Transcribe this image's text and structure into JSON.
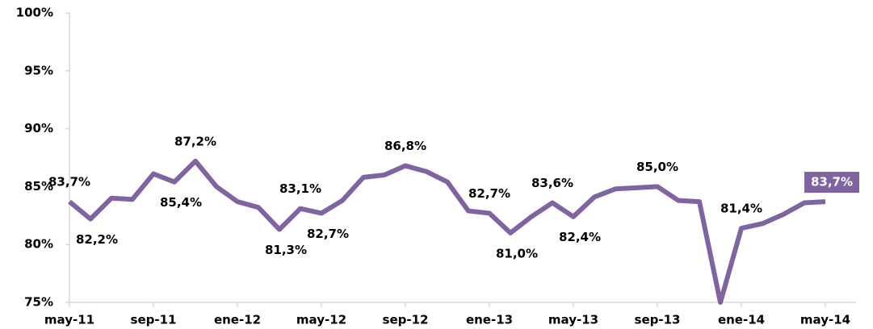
{
  "chart_data": {
    "type": "line",
    "categories": [
      "may-11",
      null,
      null,
      null,
      "sep-11",
      null,
      null,
      null,
      "ene-12",
      null,
      null,
      null,
      "may-12",
      null,
      null,
      null,
      "sep-12",
      null,
      null,
      null,
      "ene-13",
      null,
      null,
      null,
      "may-13",
      null,
      null,
      null,
      "sep-13",
      null,
      null,
      null,
      "ene-14",
      null,
      null,
      null,
      "may-14"
    ],
    "series": [
      {
        "color": "#8064a2",
        "values": [
          83.7,
          82.2,
          84.0,
          83.9,
          86.1,
          85.4,
          87.2,
          85.0,
          83.7,
          83.2,
          81.3,
          83.1,
          82.7,
          83.8,
          85.8,
          86.0,
          86.8,
          86.3,
          85.4,
          82.9,
          82.7,
          81.0,
          82.4,
          83.6,
          82.4,
          84.1,
          84.8,
          84.9,
          85.0,
          83.8,
          83.7,
          75.0,
          81.4,
          81.8,
          82.6,
          83.6,
          83.7
        ],
        "value_labels": [
          "83,7%",
          "82,2%",
          null,
          null,
          null,
          "85,4%",
          "87,2%",
          null,
          null,
          null,
          "81,3%",
          "83,1%",
          "82,7%",
          null,
          null,
          null,
          "86,8%",
          null,
          null,
          null,
          "82,7%",
          "81,0%",
          null,
          "83,6%",
          "82,4%",
          null,
          null,
          null,
          "85,0%",
          null,
          null,
          null,
          "81,4%",
          null,
          null,
          null,
          "83,7%"
        ]
      }
    ],
    "ylim": [
      75,
      100
    ],
    "yticks": [
      {
        "value": 75,
        "label": "75%"
      },
      {
        "value": 80,
        "label": "80%"
      },
      {
        "value": 85,
        "label": "85%"
      },
      {
        "value": 90,
        "label": "90%"
      },
      {
        "value": 95,
        "label": "95%"
      },
      {
        "value": 100,
        "label": "100%"
      }
    ]
  }
}
